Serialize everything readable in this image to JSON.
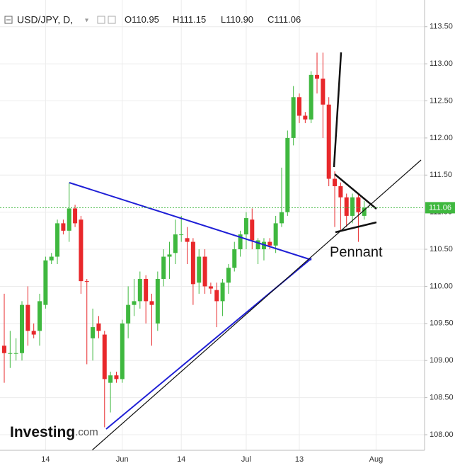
{
  "chart_data": {
    "type": "candlestick",
    "symbol": "USD/JPY, D,",
    "ohlc_header": [
      "O110.95",
      "H111.15",
      "L110.90",
      "C111.06"
    ],
    "annotation": "Pennant",
    "logo": [
      "Investing",
      ".com"
    ],
    "categories": [
      null,
      null,
      null,
      null,
      null,
      null,
      null,
      "14",
      null,
      null,
      null,
      null,
      null,
      null,
      null,
      null,
      null,
      null,
      null,
      null,
      "Jun",
      null,
      null,
      null,
      null,
      null,
      null,
      null,
      null,
      null,
      "14",
      null,
      null,
      null,
      null,
      null,
      null,
      null,
      null,
      null,
      null,
      "Jul",
      null,
      null,
      null,
      null,
      null,
      null,
      null,
      null,
      "13",
      null,
      null,
      null,
      null,
      null,
      null,
      null,
      null,
      null,
      null,
      null,
      null,
      "Aug",
      null
    ],
    "open": [
      109.2,
      109.1,
      109.1,
      109.1,
      109.75,
      109.4,
      109.4,
      109.75,
      110.35,
      110.4,
      110.85,
      110.75,
      111.05,
      110.9,
      110.07,
      109.3,
      109.5,
      109.35,
      108.7,
      108.8,
      108.75,
      109.5,
      109.75,
      109.8,
      110.1,
      109.8,
      109.5,
      110.1,
      110.4,
      110.45,
      110.7,
      110.65,
      110.6,
      110.05,
      110.4,
      110.0,
      109.95,
      109.8,
      110.05,
      110.25,
      110.5,
      110.7,
      110.9,
      110.5,
      110.5,
      110.6,
      110.55,
      110.85,
      111.0,
      112.0,
      112.55,
      112.3,
      112.25,
      112.85,
      112.8,
      112.45,
      111.45,
      111.35,
      111.2,
      110.95,
      111.2,
      110.95,
      null,
      null,
      null
    ],
    "high": [
      109.9,
      109.4,
      109.3,
      109.8,
      110.0,
      109.5,
      109.9,
      110.4,
      110.45,
      110.9,
      110.9,
      111.4,
      111.1,
      110.95,
      110.1,
      109.7,
      109.6,
      109.4,
      108.85,
      108.85,
      109.55,
      110.0,
      110.1,
      110.2,
      110.15,
      109.9,
      110.2,
      110.5,
      110.6,
      110.9,
      110.95,
      110.8,
      110.65,
      110.5,
      110.5,
      110.05,
      110.05,
      110.1,
      110.3,
      110.6,
      110.75,
      111.0,
      111.05,
      110.65,
      110.65,
      110.65,
      110.95,
      111.6,
      112.1,
      112.7,
      112.6,
      112.35,
      112.9,
      113.15,
      113.15,
      112.55,
      111.55,
      111.4,
      111.25,
      111.25,
      111.25,
      111.15,
      null,
      null,
      null
    ],
    "low": [
      108.7,
      108.9,
      109.0,
      109.0,
      109.2,
      109.3,
      109.2,
      109.7,
      110.3,
      110.3,
      110.7,
      110.6,
      110.8,
      109.9,
      108.95,
      109.0,
      109.3,
      108.1,
      108.3,
      108.7,
      108.7,
      109.3,
      109.6,
      109.7,
      109.5,
      109.2,
      109.4,
      110.0,
      110.1,
      110.3,
      110.6,
      110.3,
      109.75,
      109.9,
      109.9,
      109.9,
      109.45,
      109.6,
      109.9,
      110.2,
      110.4,
      110.5,
      110.5,
      110.3,
      110.35,
      110.5,
      110.45,
      110.8,
      110.95,
      111.9,
      112.2,
      112.2,
      112.2,
      112.6,
      112.0,
      111.35,
      110.8,
      110.75,
      110.8,
      110.85,
      110.6,
      110.9,
      null,
      null,
      null
    ],
    "close": [
      109.1,
      109.1,
      109.1,
      109.75,
      109.4,
      109.35,
      109.8,
      110.35,
      110.4,
      110.85,
      110.75,
      111.05,
      110.85,
      110.07,
      110.06,
      109.45,
      109.4,
      108.75,
      108.8,
      108.75,
      109.5,
      109.75,
      109.8,
      110.1,
      109.8,
      109.75,
      110.1,
      110.4,
      110.43,
      110.7,
      110.7,
      110.6,
      110.03,
      110.4,
      110.0,
      109.97,
      109.8,
      110.05,
      110.25,
      110.5,
      110.7,
      110.92,
      110.62,
      110.62,
      110.6,
      110.55,
      110.85,
      111.0,
      112.0,
      112.55,
      112.3,
      112.25,
      112.85,
      112.8,
      112.45,
      111.45,
      111.35,
      111.2,
      110.95,
      111.2,
      111.0,
      111.06,
      null,
      null,
      null
    ],
    "up_color": "#3fb83f",
    "down_color": "#e8282b",
    "last_price": {
      "value": 111.06,
      "label": "111.06"
    },
    "last_color": "#3fb83f",
    "ylim": [
      107.79,
      113.86
    ],
    "yticks": [
      {
        "value": 108,
        "label": "108.00"
      },
      {
        "value": 108.5,
        "label": "108.50"
      },
      {
        "value": 109,
        "label": "109.00"
      },
      {
        "value": 109.5,
        "label": "109.50"
      },
      {
        "value": 110,
        "label": "110.00"
      },
      {
        "value": 110.5,
        "label": "110.50"
      },
      {
        "value": 111,
        "label": "111.00"
      },
      {
        "value": 111.5,
        "label": "111.50"
      },
      {
        "value": 112,
        "label": "112.00"
      },
      {
        "value": 112.5,
        "label": "112.50"
      },
      {
        "value": 113,
        "label": "113.00"
      },
      {
        "value": 113.5,
        "label": "113.50"
      }
    ],
    "grid": true
  }
}
